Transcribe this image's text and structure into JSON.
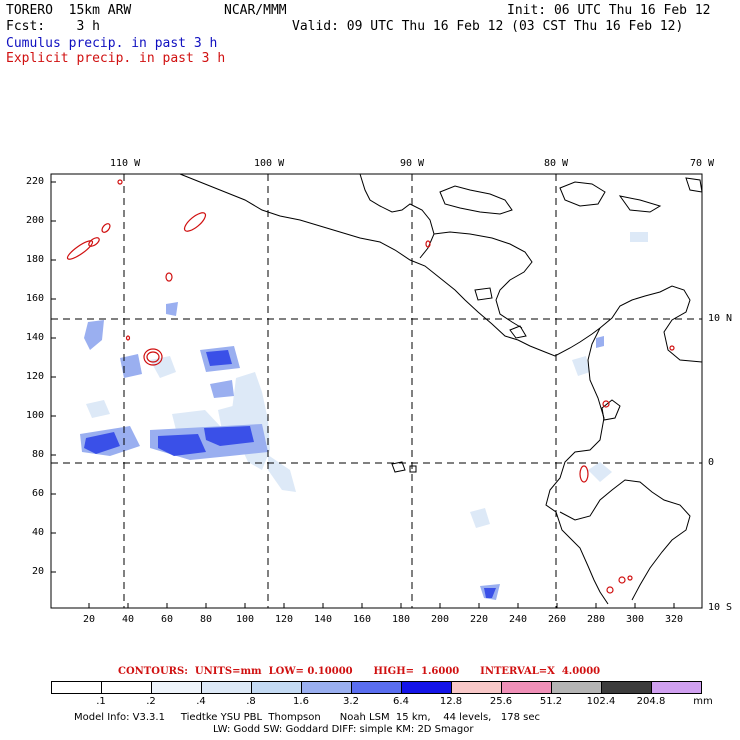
{
  "header": {
    "model": "TORERO  15km ARW",
    "org": "NCAR/MMM",
    "init": "Init: 06 UTC Thu 16 Feb 12",
    "fcst": "Fcst:    3 h",
    "valid": "Valid: 09 UTC Thu 16 Feb 12 (03 CST Thu 16 Feb 12)",
    "cumulus": "Cumulus precip. in past 3 h",
    "explicit": "Explicit precip. in past 3 h"
  },
  "axes": {
    "top_lon": [
      "110 W",
      "100 W",
      "90 W",
      "80 W",
      "70 W"
    ],
    "right_lat": [
      "10 N",
      "0",
      "10 S"
    ],
    "left_y": [
      "220",
      "200",
      "180",
      "160",
      "140",
      "120",
      "100",
      "80",
      "60",
      "40",
      "20"
    ],
    "bottom_x": [
      "20",
      "40",
      "60",
      "80",
      "100",
      "120",
      "140",
      "160",
      "180",
      "200",
      "220",
      "240",
      "260",
      "280",
      "300",
      "320"
    ]
  },
  "legend": {
    "contours_line": "CONTOURS:  UNITS=mm  LOW= 0.10000      HIGH=  1.6000      INTERVAL=X  4.0000",
    "labels": [
      ".1",
      ".2",
      ".4",
      ".8",
      "1.6",
      "3.2",
      "6.4",
      "12.8",
      "25.6",
      "51.2",
      "102.4",
      "204.8"
    ],
    "unit": "mm",
    "colors": [
      "#ffffff",
      "#ffffff",
      "#eef4fb",
      "#dde9f7",
      "#c4daf3",
      "#9aaff0",
      "#5a6ef0",
      "#1414e8",
      "#f8c8c8",
      "#f090b8",
      "#b4b4b4",
      "#3c3c3c",
      "#d0a0f0"
    ]
  },
  "footer": {
    "line1": "Model Info: V3.3.1     Tiedtke YSU PBL  Thompson      Noah LSM  15 km,    44 levels,   178 sec",
    "line2": "LW: Godd SW: Goddard DIFF: simple KM: 2D Smagor"
  }
}
